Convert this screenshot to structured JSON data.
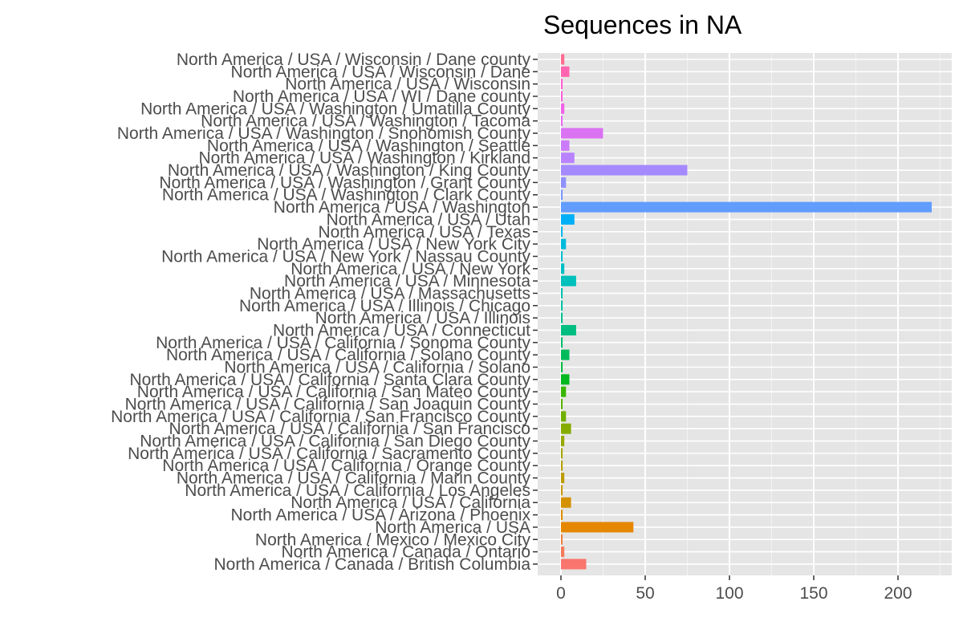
{
  "chart_data": {
    "type": "bar",
    "orientation": "horizontal",
    "title": "Sequences in NA",
    "xlabel": "",
    "ylabel": "",
    "xlim": [
      0,
      225
    ],
    "xticks": [
      0,
      50,
      100,
      150,
      200
    ],
    "grid": true,
    "legend": "none",
    "panel_background": "#e5e5e5",
    "categories": [
      "North America / Canada / British Columbia",
      "North America / Canada / Ontario",
      "North America / Mexico / Mexico City",
      "North America / USA",
      "North America / USA / Arizona / Phoenix",
      "North America / USA / California",
      "North America / USA / California / Los Angeles",
      "North America / USA / California / Marin County",
      "North America / USA / California / Orange County",
      "North America / USA / California / Sacramento County",
      "North America / USA / California / San Diego County",
      "North America / USA / California / San Francisco",
      "North America / USA / California / San Francisco County",
      "North America / USA / California / San Joaquin County",
      "North America / USA / California / San Mateo County",
      "North America / USA / California / Santa Clara County",
      "North America / USA / California / Solano",
      "North America / USA / California / Solano County",
      "North America / USA / California / Sonoma County",
      "North America / USA / Connecticut",
      "North America / USA / Illinois",
      "North America / USA / Illinois / Chicago",
      "North America / USA / Massachusetts",
      "North America / USA / Minnesota",
      "North America / USA / New York",
      "North America / USA / New York / Nassau County",
      "North America / USA / New York City",
      "North America / USA / Texas",
      "North America / USA / Utah",
      "North America / USA / Washington",
      "North America / USA / Washington / Clark County",
      "North America / USA / Washington / Grant County",
      "North America / USA / Washington / King County",
      "North America / USA / Washington / Kirkland",
      "North America / USA / Washington / Seattle",
      "North America / USA / Washington / Snohomish County",
      "North America / USA / Washington / Tacoma",
      "North America / USA / Washington / Umatilla County",
      "North America / USA / WI / Dane county",
      "North America / USA / Wisconsin",
      "North America / USA / Wisconsin / Dane",
      "North America / USA / Wisconsin / Dane county"
    ],
    "values": [
      15,
      2,
      1,
      43,
      1,
      6,
      1,
      2,
      1,
      1,
      2,
      6,
      3,
      1,
      3,
      5,
      1,
      5,
      1,
      9,
      1,
      1,
      1,
      9,
      2,
      1,
      3,
      1,
      8,
      220,
      1,
      3,
      75,
      8,
      5,
      25,
      1,
      2,
      1,
      1,
      5,
      2
    ],
    "colors": [
      "#F8766D",
      "#F37B59",
      "#ED8141",
      "#E58700",
      "#DC8D00",
      "#D49200",
      "#C99800",
      "#BE9C00",
      "#B3A000",
      "#A5A400",
      "#97A800",
      "#86AC00",
      "#72B000",
      "#5BB300",
      "#39B600",
      "#00B81F",
      "#00BA42",
      "#00BB5A",
      "#00BC6E",
      "#00BE80",
      "#00BF91",
      "#00C0A0",
      "#00C0AF",
      "#00C0BC",
      "#00BFC4",
      "#00BDD0",
      "#00BADC",
      "#00B6E9",
      "#00B0F6",
      "#619CFF",
      "#7B96FF",
      "#8F91FF",
      "#A58AFF",
      "#B983FF",
      "#CB7CF9",
      "#DA72F2",
      "#E76BF3",
      "#F164E8",
      "#F962DD",
      "#FD61D1",
      "#FF64B0",
      "#FF6C91"
    ]
  }
}
